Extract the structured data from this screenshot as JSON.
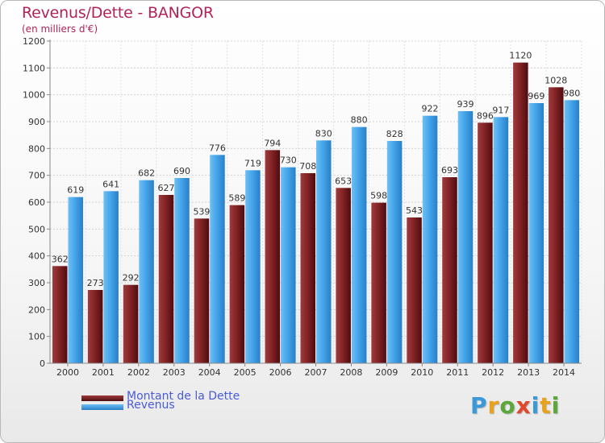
{
  "header": {
    "title": "Revenus/Dette - BANGOR",
    "subtitle": "(en milliers d'€)"
  },
  "legend": {
    "items": [
      {
        "label": "Montant de la Dette",
        "color": "#7a1f22"
      },
      {
        "label": "Revenus",
        "color": "#3e9ee6"
      }
    ]
  },
  "logo": {
    "letters": [
      {
        "char": "P",
        "color": "#3a9ad9"
      },
      {
        "char": "r",
        "color": "#e8a21c"
      },
      {
        "char": "o",
        "color": "#5aa83a"
      },
      {
        "char": "x",
        "color": "#e04a2a"
      },
      {
        "char": "i",
        "color": "#3a9ad9"
      },
      {
        "char": "t",
        "color": "#e8a21c"
      },
      {
        "char": "i",
        "color": "#5aa83a"
      }
    ]
  },
  "chart_data": {
    "type": "bar",
    "categories": [
      "2000",
      "2001",
      "2002",
      "2003",
      "2004",
      "2005",
      "2006",
      "2007",
      "2008",
      "2009",
      "2010",
      "2011",
      "2012",
      "2013",
      "2014"
    ],
    "series": [
      {
        "name": "Montant de la Dette",
        "color": "#7a1f22",
        "values": [
          362,
          273,
          292,
          627,
          539,
          589,
          794,
          708,
          653,
          598,
          543,
          693,
          896,
          1120,
          1028
        ]
      },
      {
        "name": "Revenus",
        "color": "#3e9ee6",
        "values": [
          619,
          641,
          682,
          690,
          776,
          719,
          730,
          830,
          880,
          828,
          922,
          939,
          917,
          969,
          980
        ]
      }
    ],
    "yticks": [
      0,
      100,
      200,
      300,
      400,
      500,
      600,
      700,
      800,
      900,
      1000,
      1100,
      1200
    ],
    "ylim": [
      0,
      1200
    ],
    "grid": true
  }
}
